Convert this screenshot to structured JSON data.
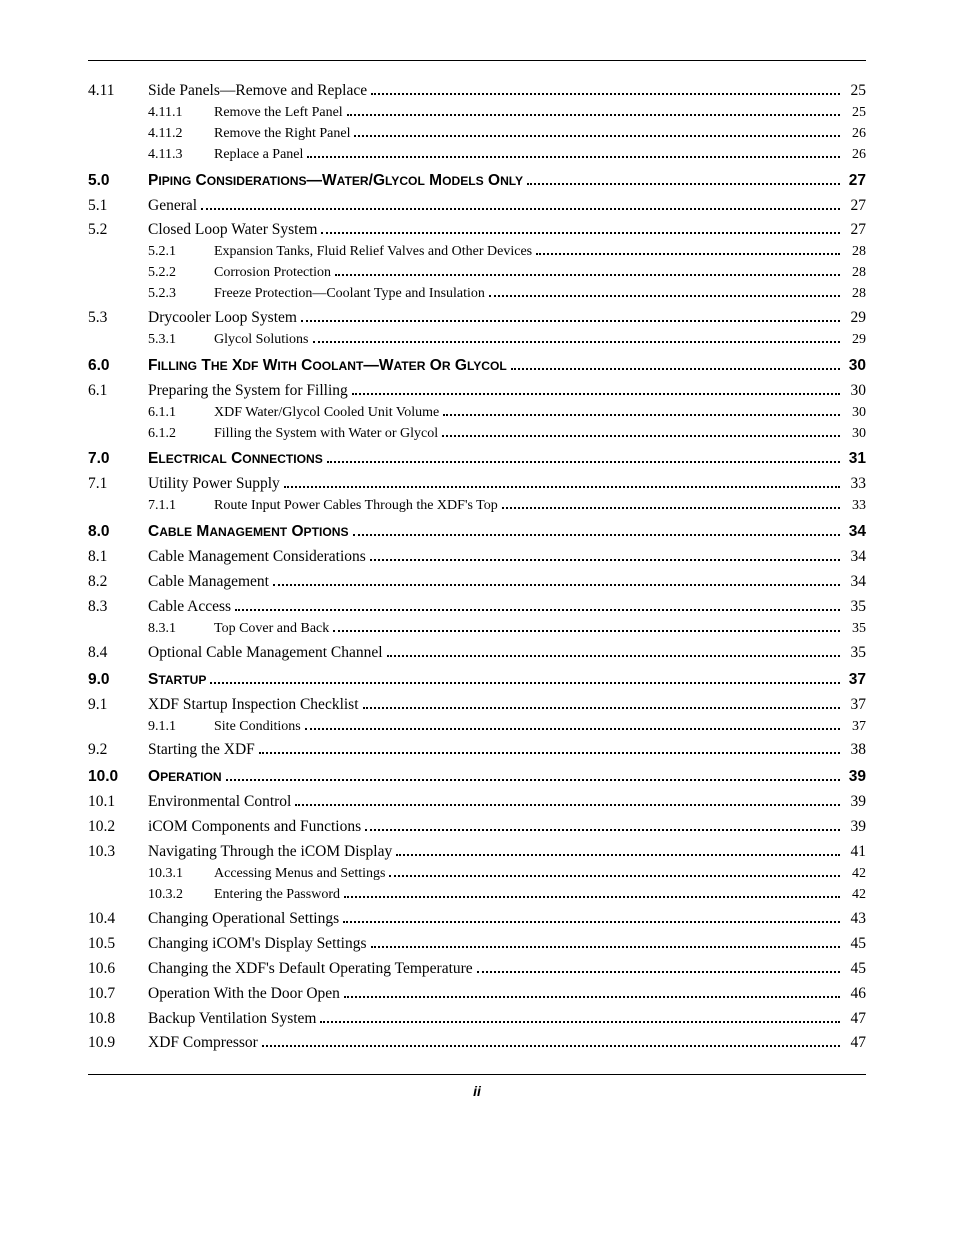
{
  "page_number_label": "ii",
  "entries": [
    {
      "level": "sub",
      "num": "4.11",
      "title": "Side Panels—Remove and Replace",
      "page": "25"
    },
    {
      "level": "subsub",
      "num": "4.11.1",
      "title": "Remove the Left Panel",
      "page": "25"
    },
    {
      "level": "subsub",
      "num": "4.11.2",
      "title": "Remove the Right Panel",
      "page": "26"
    },
    {
      "level": "subsub",
      "num": "4.11.3",
      "title": "Replace a Panel",
      "page": "26"
    },
    {
      "level": "section",
      "num": "5.0",
      "title": "Piping Considerations—Water/Glycol Models Only",
      "page": "27"
    },
    {
      "level": "sub",
      "num": "5.1",
      "title": "General",
      "page": "27"
    },
    {
      "level": "sub",
      "num": "5.2",
      "title": "Closed Loop Water System",
      "page": "27"
    },
    {
      "level": "subsub",
      "num": "5.2.1",
      "title": "Expansion Tanks, Fluid Relief Valves and Other Devices",
      "page": "28"
    },
    {
      "level": "subsub",
      "num": "5.2.2",
      "title": "Corrosion Protection",
      "page": "28"
    },
    {
      "level": "subsub",
      "num": "5.2.3",
      "title": "Freeze Protection—Coolant Type and Insulation",
      "page": "28"
    },
    {
      "level": "sub",
      "num": "5.3",
      "title": "Drycooler Loop System",
      "page": "29"
    },
    {
      "level": "subsub",
      "num": "5.3.1",
      "title": "Glycol Solutions",
      "page": "29"
    },
    {
      "level": "section",
      "num": "6.0",
      "title": "Filling the XDF with Coolant—Water or Glycol",
      "page": "30"
    },
    {
      "level": "sub",
      "num": "6.1",
      "title": "Preparing the System for Filling",
      "page": "30"
    },
    {
      "level": "subsub",
      "num": "6.1.1",
      "title": "XDF Water/Glycol Cooled Unit Volume",
      "page": "30"
    },
    {
      "level": "subsub",
      "num": "6.1.2",
      "title": "Filling the System with Water or Glycol",
      "page": "30"
    },
    {
      "level": "section",
      "num": "7.0",
      "title": "Electrical Connections",
      "page": "31"
    },
    {
      "level": "sub",
      "num": "7.1",
      "title": "Utility Power Supply",
      "page": "33"
    },
    {
      "level": "subsub",
      "num": "7.1.1",
      "title": "Route Input Power Cables Through the XDF's Top",
      "page": "33"
    },
    {
      "level": "section",
      "num": "8.0",
      "title": "Cable Management Options",
      "page": "34"
    },
    {
      "level": "sub",
      "num": "8.1",
      "title": "Cable Management Considerations",
      "page": "34"
    },
    {
      "level": "sub",
      "num": "8.2",
      "title": "Cable Management",
      "page": "34"
    },
    {
      "level": "sub",
      "num": "8.3",
      "title": "Cable Access",
      "page": "35"
    },
    {
      "level": "subsub",
      "num": "8.3.1",
      "title": "Top Cover and Back",
      "page": "35"
    },
    {
      "level": "sub",
      "num": "8.4",
      "title": "Optional Cable Management Channel",
      "page": "35"
    },
    {
      "level": "section",
      "num": "9.0",
      "title": "Startup",
      "page": "37"
    },
    {
      "level": "sub",
      "num": "9.1",
      "title": "XDF Startup Inspection Checklist",
      "page": "37"
    },
    {
      "level": "subsub",
      "num": "9.1.1",
      "title": "Site Conditions",
      "page": "37"
    },
    {
      "level": "sub",
      "num": "9.2",
      "title": "Starting the XDF",
      "page": "38"
    },
    {
      "level": "section",
      "num": "10.0",
      "title": "Operation",
      "page": "39"
    },
    {
      "level": "sub",
      "num": "10.1",
      "title": "Environmental Control",
      "page": "39"
    },
    {
      "level": "sub",
      "num": "10.2",
      "title": "iCOM Components and Functions",
      "page": "39"
    },
    {
      "level": "sub",
      "num": "10.3",
      "title": "Navigating Through the iCOM Display",
      "page": "41"
    },
    {
      "level": "subsub",
      "num": "10.3.1",
      "title": "Accessing Menus and Settings",
      "page": "42"
    },
    {
      "level": "subsub",
      "num": "10.3.2",
      "title": "Entering the Password",
      "page": "42"
    },
    {
      "level": "sub",
      "num": "10.4",
      "title": "Changing Operational Settings",
      "page": "43"
    },
    {
      "level": "sub",
      "num": "10.5",
      "title": "Changing iCOM's Display Settings",
      "page": "45"
    },
    {
      "level": "sub",
      "num": "10.6",
      "title": "Changing the XDF's Default Operating Temperature",
      "page": "45"
    },
    {
      "level": "sub",
      "num": "10.7",
      "title": "Operation With the Door Open",
      "page": "46"
    },
    {
      "level": "sub",
      "num": "10.8",
      "title": "Backup Ventilation System",
      "page": "47"
    },
    {
      "level": "sub",
      "num": "10.9",
      "title": "XDF Compressor",
      "page": "47"
    }
  ]
}
